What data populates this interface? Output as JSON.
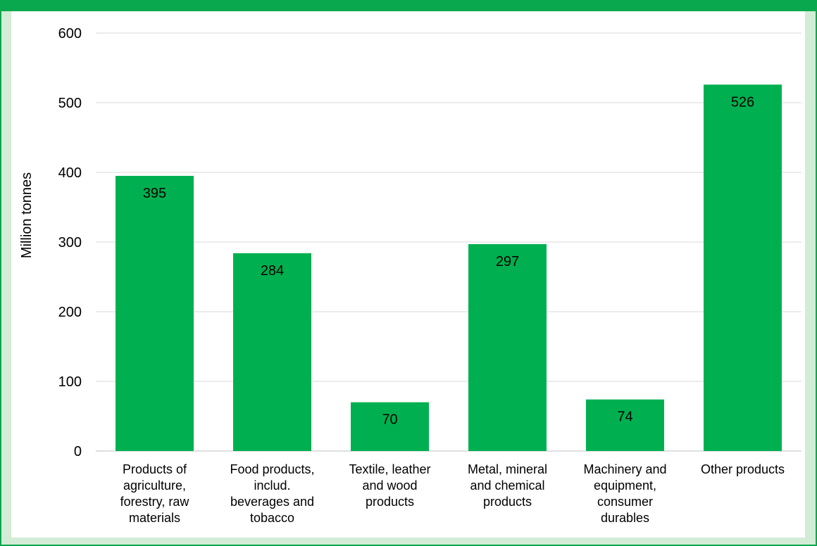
{
  "chart_data": {
    "type": "bar",
    "ylabel": "Million tonnes",
    "ylim": [
      0,
      600
    ],
    "yticks": [
      0,
      100,
      200,
      300,
      400,
      500,
      600
    ],
    "grid": true,
    "categories": [
      "Products of agriculture, forestry, raw materials",
      "Food products, includ. beverages and tobacco",
      "Textile, leather and wood products",
      "Metal, mineral and chemical products",
      "Machinery and equipment, consumer durables",
      "Other products"
    ],
    "category_lines": [
      [
        "Products of",
        "agriculture,",
        "forestry, raw",
        "materials"
      ],
      [
        "Food products,",
        "includ.",
        "beverages and",
        "tobacco"
      ],
      [
        "Textile, leather",
        "and wood",
        "products"
      ],
      [
        "Metal, mineral",
        "and chemical",
        "products"
      ],
      [
        "Machinery and",
        "equipment,",
        "consumer",
        "durables"
      ],
      [
        "Other products"
      ]
    ],
    "values": [
      395,
      284,
      70,
      297,
      74,
      526
    ],
    "bar_color": "#00b050",
    "frame_color": "#0aa84e",
    "background_color": "#d2ecd6"
  }
}
